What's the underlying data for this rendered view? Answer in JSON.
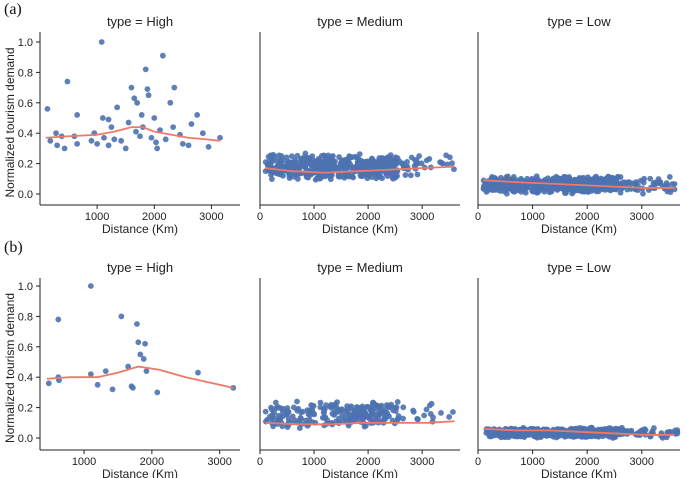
{
  "figure": {
    "colors": {
      "point": "#4c72b0",
      "trend": "#f0786a",
      "axis": "#222222"
    },
    "panels": [
      {
        "label": "(a)",
        "chart_data": [
          {
            "type": "scatter",
            "title": "type = High",
            "xlabel": "Distance (Km)",
            "ylabel": "Normalized tourism demand",
            "xlim": [
              0,
              3500
            ],
            "ylim": [
              0,
              1.05
            ],
            "xticks": [
              "1000",
              "2000",
              "3000"
            ],
            "yticks": [
              "0.0",
              "0.2",
              "0.4",
              "0.6",
              "0.8",
              "1.0"
            ],
            "points": [
              [
                130,
                0.56
              ],
              [
                180,
                0.35
              ],
              [
                280,
                0.4
              ],
              [
                300,
                0.32
              ],
              [
                380,
                0.38
              ],
              [
                430,
                0.3
              ],
              [
                480,
                0.74
              ],
              [
                600,
                0.38
              ],
              [
                650,
                0.33
              ],
              [
                650,
                0.52
              ],
              [
                900,
                0.35
              ],
              [
                950,
                0.4
              ],
              [
                1000,
                0.33
              ],
              [
                1080,
                1.0
              ],
              [
                1100,
                0.5
              ],
              [
                1120,
                0.37
              ],
              [
                1200,
                0.32
              ],
              [
                1200,
                0.49
              ],
              [
                1250,
                0.44
              ],
              [
                1300,
                0.36
              ],
              [
                1350,
                0.57
              ],
              [
                1420,
                0.35
              ],
              [
                1500,
                0.3
              ],
              [
                1550,
                0.47
              ],
              [
                1600,
                0.7
              ],
              [
                1650,
                0.63
              ],
              [
                1680,
                0.41
              ],
              [
                1700,
                0.6
              ],
              [
                1750,
                0.38
              ],
              [
                1780,
                0.52
              ],
              [
                1800,
                0.44
              ],
              [
                1850,
                0.82
              ],
              [
                1880,
                0.69
              ],
              [
                1900,
                0.65
              ],
              [
                1950,
                0.37
              ],
              [
                2000,
                0.5
              ],
              [
                2030,
                0.34
              ],
              [
                2050,
                0.3
              ],
              [
                2100,
                0.42
              ],
              [
                2150,
                0.91
              ],
              [
                2200,
                0.36
              ],
              [
                2280,
                0.6
              ],
              [
                2330,
                0.44
              ],
              [
                2350,
                0.7
              ],
              [
                2450,
                0.39
              ],
              [
                2500,
                0.33
              ],
              [
                2600,
                0.32
              ],
              [
                2650,
                0.46
              ],
              [
                2750,
                0.52
              ],
              [
                2850,
                0.4
              ],
              [
                2950,
                0.31
              ],
              [
                3150,
                0.37
              ]
            ],
            "trend": [
              [
                100,
                0.37
              ],
              [
                500,
                0.38
              ],
              [
                1000,
                0.39
              ],
              [
                1300,
                0.41
              ],
              [
                1600,
                0.44
              ],
              [
                1800,
                0.44
              ],
              [
                2000,
                0.41
              ],
              [
                2300,
                0.39
              ],
              [
                2600,
                0.37
              ],
              [
                2900,
                0.36
              ],
              [
                3150,
                0.35
              ]
            ]
          },
          {
            "type": "scatter",
            "title": "type = Medium",
            "xlabel": "Distance (Km)",
            "ylabel": "",
            "xlim": [
              0,
              3700
            ],
            "ylim": [
              0,
              1.05
            ],
            "xticks": [
              "0",
              "1000",
              "2000",
              "3000"
            ],
            "yticks": [],
            "cloud": {
              "n": 520,
              "xmin": 100,
              "xmax": 3600,
              "ymin": 0.09,
              "ymax": 0.27,
              "seed": 7
            },
            "trend": [
              [
                100,
                0.17
              ],
              [
                600,
                0.15
              ],
              [
                1200,
                0.14
              ],
              [
                1800,
                0.15
              ],
              [
                2400,
                0.16
              ],
              [
                3000,
                0.17
              ],
              [
                3600,
                0.18
              ]
            ]
          },
          {
            "type": "scatter",
            "title": "type = Low",
            "xlabel": "Distance (Km)",
            "ylabel": "",
            "xlim": [
              0,
              3700
            ],
            "ylim": [
              0,
              1.05
            ],
            "xticks": [
              "0",
              "1000",
              "2000",
              "3000"
            ],
            "yticks": [],
            "cloud": {
              "n": 620,
              "xmin": 100,
              "xmax": 3600,
              "ymin": 0.0,
              "ymax": 0.12,
              "seed": 11
            },
            "trend": [
              [
                100,
                0.09
              ],
              [
                600,
                0.08
              ],
              [
                1200,
                0.07
              ],
              [
                1800,
                0.06
              ],
              [
                2400,
                0.05
              ],
              [
                3000,
                0.04
              ],
              [
                3600,
                0.04
              ]
            ]
          }
        ]
      },
      {
        "label": "(b)",
        "chart_data": [
          {
            "type": "scatter",
            "title": "type = High",
            "xlabel": "Distance (Km)",
            "ylabel": "Normalized tourism demand",
            "xlim": [
              350,
              3300
            ],
            "ylim": [
              0,
              1.05
            ],
            "xticks": [
              "1000",
              "2000",
              "3000"
            ],
            "yticks": [
              "0.0",
              "0.2",
              "0.4",
              "0.6",
              "0.8",
              "1.0"
            ],
            "points": [
              [
                480,
                0.36
              ],
              [
                620,
                0.78
              ],
              [
                620,
                0.4
              ],
              [
                630,
                0.38
              ],
              [
                1100,
                1.0
              ],
              [
                1100,
                0.42
              ],
              [
                1200,
                0.35
              ],
              [
                1320,
                0.44
              ],
              [
                1420,
                0.32
              ],
              [
                1550,
                0.8
              ],
              [
                1650,
                0.47
              ],
              [
                1700,
                0.34
              ],
              [
                1720,
                0.33
              ],
              [
                1780,
                0.75
              ],
              [
                1800,
                0.63
              ],
              [
                1830,
                0.55
              ],
              [
                1880,
                0.52
              ],
              [
                1900,
                0.62
              ],
              [
                1920,
                0.44
              ],
              [
                2080,
                0.3
              ],
              [
                2680,
                0.43
              ],
              [
                3200,
                0.33
              ]
            ],
            "trend": [
              [
                450,
                0.39
              ],
              [
                800,
                0.4
              ],
              [
                1200,
                0.4
              ],
              [
                1500,
                0.43
              ],
              [
                1800,
                0.47
              ],
              [
                2100,
                0.45
              ],
              [
                2500,
                0.4
              ],
              [
                2900,
                0.36
              ],
              [
                3200,
                0.33
              ]
            ]
          },
          {
            "type": "scatter",
            "title": "type = Medium",
            "xlabel": "Distance (Km)",
            "ylabel": "",
            "xlim": [
              0,
              3700
            ],
            "ylim": [
              0,
              1.05
            ],
            "xticks": [
              "0",
              "1000",
              "2000",
              "3000"
            ],
            "yticks": [],
            "cloud": {
              "n": 240,
              "xmin": 100,
              "xmax": 3600,
              "ymin": 0.06,
              "ymax": 0.25,
              "seed": 23
            },
            "trend": [
              [
                100,
                0.1
              ],
              [
                700,
                0.09
              ],
              [
                1300,
                0.09
              ],
              [
                1900,
                0.1
              ],
              [
                2500,
                0.1
              ],
              [
                3100,
                0.1
              ],
              [
                3600,
                0.11
              ]
            ]
          },
          {
            "type": "scatter",
            "title": "type = Low",
            "xlabel": "Distance (Km)",
            "ylabel": "",
            "xlim": [
              0,
              3700
            ],
            "ylim": [
              0,
              1.05
            ],
            "xticks": [
              "0",
              "1000",
              "2000",
              "3000"
            ],
            "yticks": [],
            "cloud": {
              "n": 620,
              "xmin": 150,
              "xmax": 3650,
              "ymin": 0.0,
              "ymax": 0.07,
              "seed": 31
            },
            "trend": [
              [
                100,
                0.06
              ],
              [
                700,
                0.05
              ],
              [
                1300,
                0.05
              ],
              [
                1900,
                0.04
              ],
              [
                2500,
                0.03
              ],
              [
                3100,
                0.02
              ],
              [
                3600,
                0.02
              ]
            ]
          }
        ]
      }
    ]
  }
}
